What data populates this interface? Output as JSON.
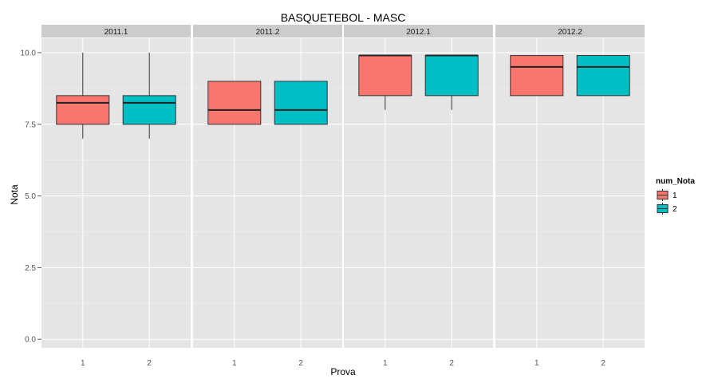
{
  "chart_data": {
    "type": "boxplot",
    "title": "BASQUETEBOL - MASC",
    "xlabel": "Prova",
    "ylabel": "Nota",
    "ylim": [
      -0.3,
      10.5
    ],
    "yticks": [
      "0.0",
      "2.5",
      "5.0",
      "7.5",
      "10.0"
    ],
    "ytick_values": [
      0,
      2.5,
      5,
      7.5,
      10
    ],
    "x_categories": [
      "1",
      "2"
    ],
    "grid": true,
    "legend": {
      "title": "num_Nota",
      "placement": "right",
      "entries": [
        {
          "label": "1",
          "color": "#F8766D"
        },
        {
          "label": "2",
          "color": "#00BFC4"
        }
      ]
    },
    "panels": [
      {
        "label": "2011.1",
        "boxes": [
          {
            "x": "1",
            "group": "1",
            "min": 7.0,
            "q1": 7.5,
            "median": 8.25,
            "q3": 8.5,
            "max": 10.0
          },
          {
            "x": "2",
            "group": "2",
            "min": 7.0,
            "q1": 7.5,
            "median": 8.25,
            "q3": 8.5,
            "max": 10.0
          }
        ]
      },
      {
        "label": "2011.2",
        "boxes": [
          {
            "x": "1",
            "group": "1",
            "min": 7.5,
            "q1": 7.5,
            "median": 8.0,
            "q3": 9.0,
            "max": 9.0
          },
          {
            "x": "2",
            "group": "2",
            "min": 7.5,
            "q1": 7.5,
            "median": 8.0,
            "q3": 9.0,
            "max": 9.0
          }
        ]
      },
      {
        "label": "2012.1",
        "boxes": [
          {
            "x": "1",
            "group": "1",
            "min": 8.0,
            "q1": 8.5,
            "median": 9.9,
            "q3": 9.9,
            "max": 9.9
          },
          {
            "x": "2",
            "group": "2",
            "min": 8.0,
            "q1": 8.5,
            "median": 9.9,
            "q3": 9.9,
            "max": 9.9
          }
        ]
      },
      {
        "label": "2012.2",
        "boxes": [
          {
            "x": "1",
            "group": "1",
            "min": 8.5,
            "q1": 8.5,
            "median": 9.5,
            "q3": 9.9,
            "max": 9.9
          },
          {
            "x": "2",
            "group": "2",
            "min": 8.5,
            "q1": 8.5,
            "median": 9.5,
            "q3": 9.9,
            "max": 9.9
          }
        ]
      }
    ]
  }
}
